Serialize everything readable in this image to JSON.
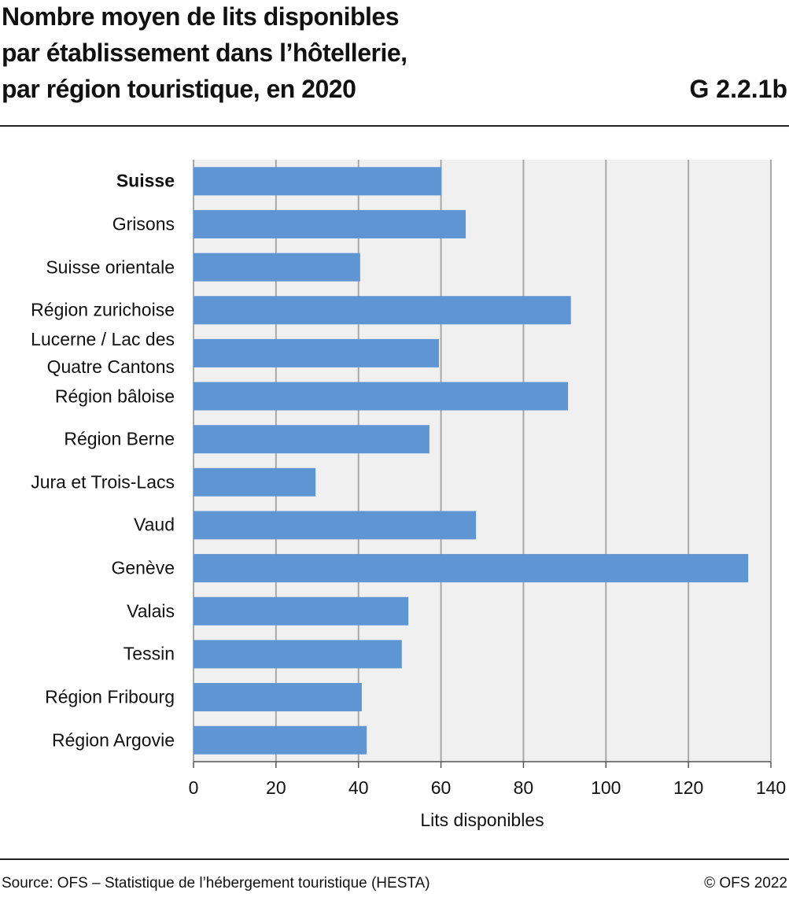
{
  "chart_data": {
    "type": "bar",
    "orientation": "horizontal",
    "title": "Nombre moyen de lits disponibles\npar établissement dans l’hôtellerie,\npar région touristique, en 2020",
    "chart_id": "G 2.2.1b",
    "categories": [
      "Suisse",
      "Grisons",
      "Suisse orientale",
      "Région zurichoise",
      "Lucerne / Lac des\nQuatre Cantons",
      "Région bâloise",
      "Région Berne",
      "Jura et Trois-Lacs",
      "Vaud",
      "Genève",
      "Valais",
      "Tessin",
      "Région Fribourg",
      "Région Argovie"
    ],
    "values": [
      60.1,
      66,
      40.4,
      91.5,
      59.5,
      90.8,
      57.2,
      29.6,
      68.5,
      134.5,
      52.1,
      50.5,
      40.8,
      42.0
    ],
    "bold_categories": [
      0
    ],
    "color": "#6095d4",
    "xlim": [
      0,
      140
    ],
    "xticks": [
      0,
      20,
      40,
      60,
      80,
      100,
      120,
      140
    ],
    "grid": true,
    "xlabel": "Lits disponibles",
    "source": "Source: OFS – Statistique de l’hébergement touristique (HESTA)",
    "copyright": "© OFS 2022"
  }
}
